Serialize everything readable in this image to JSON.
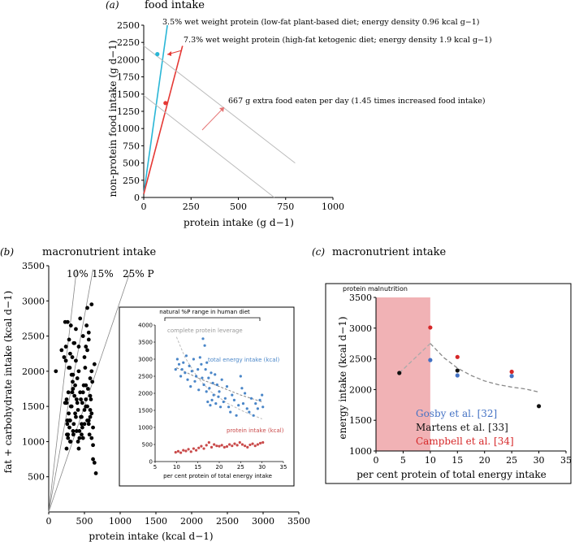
{
  "panels": {
    "a": {
      "letter": "(a)",
      "heading": "food intake",
      "xlabel": "protein intake (g d−1)",
      "ylabel": "non-protein food intake (g d−1)",
      "ann1": "3.5% wet weight protein (low-fat plant-based diet; energy density 0.96 kcal g−1)",
      "ann2": "7.3% wet weight protein (high-fat ketogenic diet; energy density 1.9 kcal g−1)",
      "ann3": "667 g extra food eaten per day (1.45 times increased food intake)"
    },
    "b": {
      "letter": "(b)",
      "heading": "macronutrient intake",
      "xlabel": "protein intake (kcal d−1)",
      "ylabel": "fat + carbohydrate intake (kcal d−1)",
      "line_labels": [
        "10%",
        "15%",
        "25% P"
      ],
      "inset": {
        "bracket_label": "natural %P range in human diet",
        "leverage_label": "complete protein leverage",
        "total_label": "total energy intake (kcal)",
        "protein_label": "protein intake (kcal)",
        "xlabel": "per cent protein of total energy intake"
      }
    },
    "c": {
      "letter": "(c)",
      "heading": "macronutrient intake",
      "xlabel": "per cent protein of total energy intake",
      "ylabel": "energy intake (kcal d−1)",
      "shade_label": "protein malnutrition",
      "legend": [
        {
          "text": "Gosby et al. [32]",
          "color": "#4472c4"
        },
        {
          "text": "Martens et al. [33]",
          "color": "#111111"
        },
        {
          "text": "Campbell et al. [34]",
          "color": "#d62728"
        }
      ]
    }
  },
  "chart_data": [
    {
      "panel": "a",
      "type": "line",
      "xlim": [
        0,
        1000
      ],
      "ylim": [
        0,
        2500
      ],
      "xticks": [
        0,
        250,
        500,
        750,
        1000
      ],
      "yticks": [
        0,
        250,
        500,
        750,
        1000,
        1250,
        1500,
        1750,
        2000,
        2250,
        2500
      ],
      "series": [
        {
          "color": "#29b6d6",
          "x": [
            0,
            125
          ],
          "y": [
            50,
            2500
          ]
        },
        {
          "color": "#e53935",
          "x": [
            0,
            205
          ],
          "y": [
            50,
            2200
          ]
        },
        {
          "color": "#bbbbbb",
          "x": [
            0,
            800
          ],
          "y": [
            2200,
            500
          ]
        },
        {
          "color": "#bbbbbb",
          "x": [
            0,
            690
          ],
          "y": [
            1480,
            0
          ]
        }
      ],
      "points": [
        {
          "x": 72,
          "y": 2080,
          "color": "#29b6d6"
        },
        {
          "x": 115,
          "y": 1370,
          "color": "#e53935"
        }
      ]
    },
    {
      "panel": "b",
      "type": "scatter",
      "xlim": [
        0,
        3500
      ],
      "ylim": [
        0,
        3500
      ],
      "xticks": [
        0,
        500,
        1000,
        1500,
        2000,
        2500,
        3000,
        3500
      ],
      "yticks": [
        500,
        1000,
        1500,
        2000,
        2500,
        3000,
        3500
      ],
      "ref_lines": [
        {
          "label": "10%",
          "x_end": 390
        },
        {
          "label": "15%",
          "x_end": 620
        },
        {
          "label": "25% P",
          "x_end": 1150
        }
      ],
      "series": [
        {
          "color": "#000000",
          "x": [
            100,
            180,
            215,
            230,
            240,
            250,
            255,
            260,
            265,
            270,
            275,
            280,
            285,
            290,
            295,
            300,
            305,
            310,
            320,
            330,
            335,
            340,
            345,
            350,
            360,
            370,
            380,
            390,
            400,
            410,
            420,
            430,
            440,
            450,
            460,
            470,
            480,
            500,
            510,
            520,
            530,
            540,
            550,
            560,
            570,
            580,
            590,
            600,
            610,
            620,
            640,
            660,
            250,
            270,
            290,
            310,
            330,
            350,
            370,
            390,
            410,
            430,
            450,
            470,
            490,
            520,
            540,
            560,
            580,
            600,
            280,
            300,
            320,
            340,
            360,
            380,
            400,
            420,
            440,
            460,
            480,
            500,
            520,
            540,
            560,
            580,
            600,
            620,
            640,
            480,
            520,
            560,
            600,
            300,
            340,
            380,
            420,
            460,
            500,
            540,
            580,
            620,
            260,
            240,
            230,
            250
          ],
          "y": [
            2000,
            2300,
            2200,
            2700,
            2150,
            1550,
            1100,
            1250,
            2700,
            1050,
            1700,
            1400,
            2450,
            1200,
            2050,
            1300,
            1000,
            2650,
            1500,
            2200,
            1850,
            1950,
            1100,
            2400,
            1650,
            1800,
            2600,
            1150,
            1900,
            1450,
            2350,
            1050,
            2750,
            1600,
            1350,
            1200,
            2500,
            2200,
            2050,
            2350,
            2650,
            2900,
            1750,
            1300,
            1100,
            1450,
            1600,
            2950,
            1850,
            750,
            700,
            550,
            900,
            1100,
            1300,
            1500,
            1700,
            1250,
            1400,
            1600,
            1000,
            1150,
            1350,
            1550,
            1800,
            1500,
            1300,
            1250,
            1650,
            1050,
            2050,
            2250,
            1950,
            1750,
            2400,
            2150,
            1550,
            2000,
            1700,
            1250,
            1050,
            1450,
            1600,
            2300,
            2550,
            1900,
            1400,
            1200,
            2100,
            1700,
            1800,
            2450,
            2000,
            1000,
            1150,
            1350,
            900,
            1100,
            1250,
            1500,
            1350,
            950,
            1300,
            2350,
            1550,
            1600
          ]
        }
      ]
    },
    {
      "panel": "b-inset",
      "type": "scatter",
      "xlim": [
        5,
        35
      ],
      "ylim": [
        0,
        4000
      ],
      "xticks": [
        5,
        10,
        15,
        20,
        25,
        30,
        35
      ],
      "yticks": [
        0,
        500,
        1000,
        1500,
        2000,
        2500,
        3000,
        3500,
        4000
      ],
      "series": [
        {
          "name": "total energy intake (kcal)",
          "color": "#4a86c8",
          "x": [
            9.8,
            10.2,
            10.6,
            11.0,
            11.3,
            11.6,
            12.0,
            12.3,
            12.6,
            13.0,
            13.3,
            13.6,
            14.0,
            14.3,
            14.6,
            15.0,
            15.2,
            15.5,
            15.8,
            16.0,
            16.2,
            16.4,
            16.6,
            16.8,
            17.0,
            17.1,
            17.3,
            17.5,
            17.7,
            17.9,
            18.1,
            18.3,
            18.5,
            18.7,
            19.0,
            19.2,
            19.5,
            19.8,
            20.0,
            20.3,
            20.6,
            21.0,
            21.4,
            21.8,
            22.2,
            22.6,
            23.0,
            23.5,
            24.0,
            24.5,
            25.0,
            25.3,
            25.6,
            26.0,
            26.5,
            27.0,
            27.5,
            28.0,
            28.5,
            29.0,
            29.5,
            30.0,
            30.2
          ],
          "y": [
            2700,
            3000,
            2850,
            2500,
            2700,
            2900,
            2600,
            3100,
            2400,
            2800,
            2200,
            2650,
            3000,
            2350,
            2500,
            2700,
            2100,
            3050,
            2850,
            2450,
            3600,
            2250,
            3400,
            2700,
            2050,
            2900,
            1750,
            2450,
            2150,
            1650,
            2600,
            1800,
            2300,
            1950,
            2550,
            1700,
            2250,
            1900,
            2050,
            1600,
            2400,
            1750,
            1850,
            2200,
            1600,
            1450,
            1950,
            1800,
            1350,
            1650,
            2500,
            2150,
            1700,
            2000,
            1550,
            1450,
            1850,
            1350,
            1700,
            1550,
            1800,
            1950,
            1600
          ]
        },
        {
          "name": "protein intake (kcal)",
          "color": "#c94a4a",
          "x": [
            9.8,
            10.4,
            11.0,
            11.6,
            12.2,
            12.8,
            13.4,
            14.0,
            14.6,
            15.2,
            15.8,
            16.4,
            17.0,
            17.6,
            18.2,
            18.8,
            19.4,
            20.0,
            20.6,
            21.2,
            21.8,
            22.4,
            23.0,
            23.6,
            24.2,
            24.8,
            25.4,
            26.0,
            26.6,
            27.2,
            27.8,
            28.4,
            29.0,
            29.6,
            30.2
          ],
          "y": [
            270,
            300,
            260,
            330,
            310,
            360,
            290,
            380,
            330,
            400,
            450,
            380,
            480,
            560,
            420,
            500,
            460,
            450,
            480,
            420,
            440,
            500,
            460,
            520,
            480,
            560,
            500,
            460,
            420,
            490,
            520,
            460,
            500,
            540,
            560
          ]
        }
      ],
      "curves": [
        {
          "name": "complete protein leverage",
          "color": "#bbbbbb",
          "x": [
            10,
            12,
            15,
            18,
            22,
            26,
            30
          ],
          "y": [
            3650,
            3050,
            2450,
            2050,
            1700,
            1450,
            1250
          ]
        },
        {
          "name": "trend",
          "color": "#888888",
          "x": [
            10,
            15,
            20,
            25,
            30
          ],
          "y": [
            2750,
            2450,
            2200,
            1950,
            1750
          ]
        }
      ]
    },
    {
      "panel": "c",
      "type": "scatter",
      "xlim": [
        0,
        35
      ],
      "ylim": [
        1000,
        3500
      ],
      "xticks": [
        0,
        5,
        10,
        15,
        20,
        25,
        30,
        35
      ],
      "yticks": [
        1000,
        1500,
        2000,
        2500,
        3000,
        3500
      ],
      "shaded_range": [
        0,
        10
      ],
      "series": [
        {
          "name": "Gosby et al. [32]",
          "color": "#4472c4",
          "x": [
            10,
            15,
            25
          ],
          "y": [
            2480,
            2230,
            2220
          ]
        },
        {
          "name": "Martens et al. [33]",
          "color": "#111111",
          "x": [
            4.3,
            15,
            30
          ],
          "y": [
            2270,
            2310,
            1730
          ]
        },
        {
          "name": "Campbell et al. [34]",
          "color": "#d62728",
          "x": [
            10,
            15,
            25
          ],
          "y": [
            3010,
            2530,
            2290
          ]
        }
      ],
      "curves": [
        {
          "color": "#aaaaaa",
          "x": [
            4.3,
            10
          ],
          "y": [
            2270,
            2750
          ]
        },
        {
          "color": "#888888",
          "x": [
            10,
            12.5,
            15,
            17.5,
            20,
            22.5,
            25,
            27.5,
            30
          ],
          "y": [
            2750,
            2520,
            2350,
            2230,
            2140,
            2080,
            2040,
            2010,
            1960
          ]
        }
      ]
    }
  ]
}
